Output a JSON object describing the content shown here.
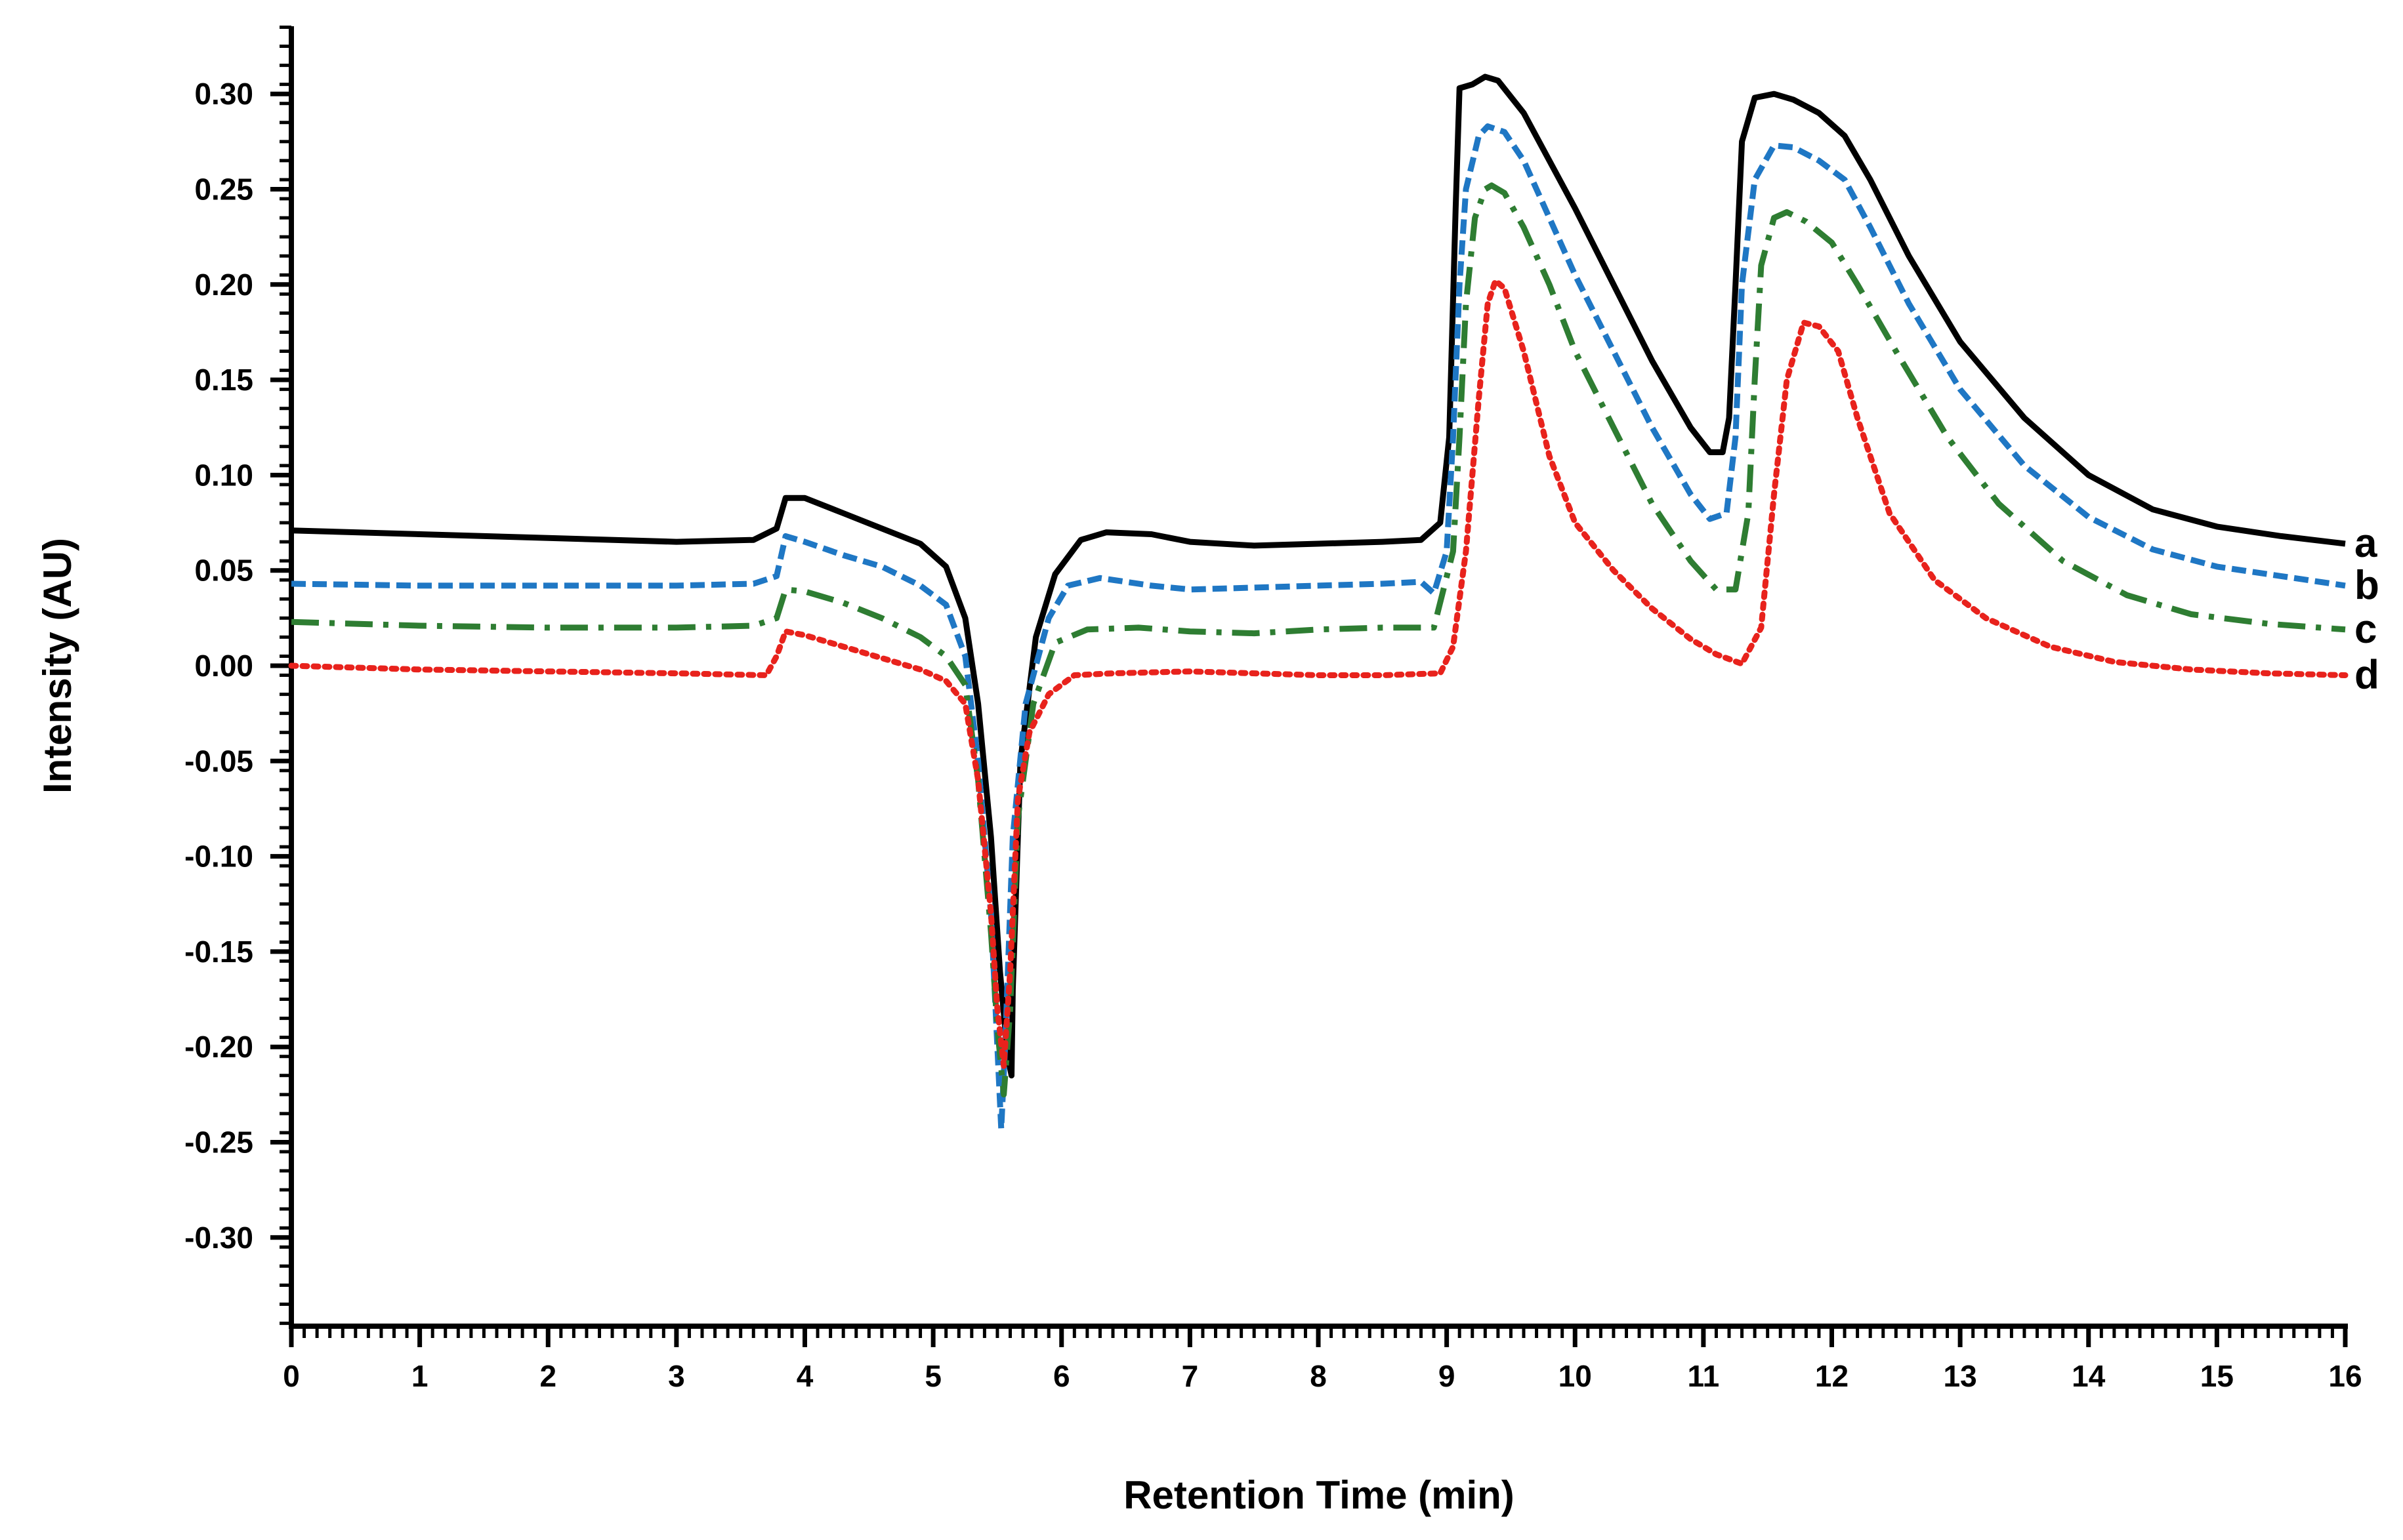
{
  "chart_data": {
    "type": "line",
    "title": "",
    "xlabel": "Retention Time (min)",
    "ylabel": "Intensity (AU)",
    "xlim": [
      0,
      16
    ],
    "ylim": [
      -0.345,
      0.335
    ],
    "grid": false,
    "legend": "end-of-line labels",
    "x_ticks": [
      0,
      1,
      2,
      3,
      4,
      5,
      6,
      7,
      8,
      9,
      10,
      11,
      12,
      13,
      14,
      15,
      16
    ],
    "x_tick_labels": [
      "0",
      "1",
      "2",
      "3",
      "4",
      "5",
      "6",
      "7",
      "8",
      "9",
      "10",
      "11",
      "12",
      "13",
      "14",
      "15",
      "16"
    ],
    "y_ticks": [
      0.3,
      0.25,
      0.2,
      0.15,
      0.1,
      0.05,
      0.0,
      -0.05,
      -0.1,
      -0.15,
      -0.2,
      -0.25,
      -0.3
    ],
    "y_tick_labels": [
      "0.30",
      "0.25",
      "0.20",
      "0.15",
      "0.10",
      "0.05",
      "0.00",
      "-0.05",
      "-0.10",
      "-0.15",
      "-0.20",
      "-0.25",
      "-0.30"
    ],
    "series": [
      {
        "name": "a",
        "label": "a",
        "color": "#000000",
        "dash": "solid",
        "points": [
          [
            0,
            0.071
          ],
          [
            1,
            0.069
          ],
          [
            2,
            0.067
          ],
          [
            3,
            0.065
          ],
          [
            3.6,
            0.066
          ],
          [
            3.78,
            0.072
          ],
          [
            3.85,
            0.088
          ],
          [
            4.0,
            0.088
          ],
          [
            4.3,
            0.08
          ],
          [
            4.6,
            0.072
          ],
          [
            4.9,
            0.064
          ],
          [
            5.1,
            0.052
          ],
          [
            5.25,
            0.025
          ],
          [
            5.35,
            -0.02
          ],
          [
            5.45,
            -0.09
          ],
          [
            5.52,
            -0.16
          ],
          [
            5.58,
            -0.205
          ],
          [
            5.61,
            -0.215
          ],
          [
            5.62,
            -0.17
          ],
          [
            5.68,
            -0.05
          ],
          [
            5.8,
            0.015
          ],
          [
            5.95,
            0.048
          ],
          [
            6.15,
            0.066
          ],
          [
            6.35,
            0.07
          ],
          [
            6.7,
            0.069
          ],
          [
            7.0,
            0.065
          ],
          [
            7.5,
            0.063
          ],
          [
            8.0,
            0.064
          ],
          [
            8.5,
            0.065
          ],
          [
            8.8,
            0.066
          ],
          [
            8.95,
            0.075
          ],
          [
            9.02,
            0.12
          ],
          [
            9.07,
            0.24
          ],
          [
            9.1,
            0.303
          ],
          [
            9.2,
            0.305
          ],
          [
            9.3,
            0.309
          ],
          [
            9.4,
            0.307
          ],
          [
            9.6,
            0.29
          ],
          [
            9.8,
            0.265
          ],
          [
            10.0,
            0.24
          ],
          [
            10.3,
            0.2
          ],
          [
            10.6,
            0.16
          ],
          [
            10.9,
            0.125
          ],
          [
            11.05,
            0.112
          ],
          [
            11.15,
            0.112
          ],
          [
            11.2,
            0.13
          ],
          [
            11.25,
            0.2
          ],
          [
            11.3,
            0.275
          ],
          [
            11.4,
            0.298
          ],
          [
            11.55,
            0.3
          ],
          [
            11.7,
            0.297
          ],
          [
            11.9,
            0.29
          ],
          [
            12.1,
            0.278
          ],
          [
            12.3,
            0.255
          ],
          [
            12.6,
            0.215
          ],
          [
            13.0,
            0.17
          ],
          [
            13.5,
            0.13
          ],
          [
            14.0,
            0.1
          ],
          [
            14.5,
            0.082
          ],
          [
            15.0,
            0.073
          ],
          [
            15.5,
            0.068
          ],
          [
            16.0,
            0.064
          ]
        ]
      },
      {
        "name": "b",
        "label": "b",
        "color": "#1f77c4",
        "dash": "short-dash",
        "points": [
          [
            0,
            0.043
          ],
          [
            1,
            0.042
          ],
          [
            2,
            0.042
          ],
          [
            3,
            0.042
          ],
          [
            3.6,
            0.043
          ],
          [
            3.78,
            0.047
          ],
          [
            3.85,
            0.068
          ],
          [
            4.0,
            0.065
          ],
          [
            4.3,
            0.058
          ],
          [
            4.6,
            0.052
          ],
          [
            4.9,
            0.042
          ],
          [
            5.1,
            0.032
          ],
          [
            5.25,
            0.005
          ],
          [
            5.35,
            -0.05
          ],
          [
            5.45,
            -0.13
          ],
          [
            5.5,
            -0.2
          ],
          [
            5.53,
            -0.243
          ],
          [
            5.56,
            -0.2
          ],
          [
            5.62,
            -0.09
          ],
          [
            5.72,
            -0.02
          ],
          [
            5.9,
            0.025
          ],
          [
            6.05,
            0.042
          ],
          [
            6.3,
            0.046
          ],
          [
            6.7,
            0.042
          ],
          [
            7.0,
            0.04
          ],
          [
            7.5,
            0.041
          ],
          [
            8.0,
            0.042
          ],
          [
            8.5,
            0.043
          ],
          [
            8.8,
            0.044
          ],
          [
            8.9,
            0.038
          ],
          [
            9.0,
            0.06
          ],
          [
            9.05,
            0.12
          ],
          [
            9.1,
            0.2
          ],
          [
            9.15,
            0.25
          ],
          [
            9.25,
            0.278
          ],
          [
            9.32,
            0.283
          ],
          [
            9.45,
            0.28
          ],
          [
            9.6,
            0.265
          ],
          [
            9.8,
            0.235
          ],
          [
            10.0,
            0.205
          ],
          [
            10.3,
            0.165
          ],
          [
            10.6,
            0.125
          ],
          [
            10.9,
            0.09
          ],
          [
            11.05,
            0.077
          ],
          [
            11.18,
            0.08
          ],
          [
            11.25,
            0.12
          ],
          [
            11.3,
            0.2
          ],
          [
            11.4,
            0.255
          ],
          [
            11.55,
            0.273
          ],
          [
            11.7,
            0.272
          ],
          [
            11.9,
            0.265
          ],
          [
            12.1,
            0.255
          ],
          [
            12.3,
            0.23
          ],
          [
            12.6,
            0.19
          ],
          [
            13.0,
            0.145
          ],
          [
            13.5,
            0.105
          ],
          [
            14.0,
            0.078
          ],
          [
            14.5,
            0.061
          ],
          [
            15.0,
            0.052
          ],
          [
            15.5,
            0.047
          ],
          [
            16.0,
            0.042
          ]
        ]
      },
      {
        "name": "c",
        "label": "c",
        "color": "#2e7d32",
        "dash": "dash-dot",
        "points": [
          [
            0,
            0.023
          ],
          [
            1,
            0.021
          ],
          [
            2,
            0.02
          ],
          [
            3,
            0.02
          ],
          [
            3.6,
            0.021
          ],
          [
            3.78,
            0.025
          ],
          [
            3.85,
            0.04
          ],
          [
            4.0,
            0.039
          ],
          [
            4.3,
            0.033
          ],
          [
            4.6,
            0.025
          ],
          [
            4.9,
            0.015
          ],
          [
            5.1,
            0.005
          ],
          [
            5.25,
            -0.01
          ],
          [
            5.35,
            -0.06
          ],
          [
            5.45,
            -0.14
          ],
          [
            5.5,
            -0.19
          ],
          [
            5.55,
            -0.225
          ],
          [
            5.6,
            -0.18
          ],
          [
            5.66,
            -0.08
          ],
          [
            5.78,
            -0.02
          ],
          [
            5.95,
            0.012
          ],
          [
            6.2,
            0.019
          ],
          [
            6.6,
            0.02
          ],
          [
            7.0,
            0.018
          ],
          [
            7.5,
            0.017
          ],
          [
            8.0,
            0.019
          ],
          [
            8.5,
            0.02
          ],
          [
            8.9,
            0.02
          ],
          [
            9.05,
            0.06
          ],
          [
            9.1,
            0.12
          ],
          [
            9.15,
            0.19
          ],
          [
            9.22,
            0.235
          ],
          [
            9.3,
            0.25
          ],
          [
            9.35,
            0.252
          ],
          [
            9.45,
            0.248
          ],
          [
            9.6,
            0.23
          ],
          [
            9.8,
            0.2
          ],
          [
            10.0,
            0.165
          ],
          [
            10.3,
            0.125
          ],
          [
            10.6,
            0.085
          ],
          [
            10.9,
            0.055
          ],
          [
            11.1,
            0.04
          ],
          [
            11.25,
            0.04
          ],
          [
            11.35,
            0.08
          ],
          [
            11.4,
            0.15
          ],
          [
            11.45,
            0.21
          ],
          [
            11.55,
            0.235
          ],
          [
            11.65,
            0.238
          ],
          [
            11.8,
            0.233
          ],
          [
            12.0,
            0.222
          ],
          [
            12.2,
            0.2
          ],
          [
            12.5,
            0.165
          ],
          [
            12.9,
            0.12
          ],
          [
            13.3,
            0.085
          ],
          [
            13.8,
            0.055
          ],
          [
            14.3,
            0.037
          ],
          [
            14.8,
            0.027
          ],
          [
            15.4,
            0.022
          ],
          [
            16.0,
            0.019
          ]
        ]
      },
      {
        "name": "d",
        "label": "d",
        "color": "#e8221c",
        "dash": "dotted",
        "points": [
          [
            0,
            0.0
          ],
          [
            1,
            -0.002
          ],
          [
            2,
            -0.003
          ],
          [
            3,
            -0.004
          ],
          [
            3.7,
            -0.005
          ],
          [
            3.78,
            0.005
          ],
          [
            3.85,
            0.018
          ],
          [
            4.0,
            0.016
          ],
          [
            4.3,
            0.01
          ],
          [
            4.6,
            0.004
          ],
          [
            4.9,
            -0.002
          ],
          [
            5.1,
            -0.008
          ],
          [
            5.25,
            -0.02
          ],
          [
            5.35,
            -0.06
          ],
          [
            5.45,
            -0.13
          ],
          [
            5.5,
            -0.18
          ],
          [
            5.55,
            -0.21
          ],
          [
            5.6,
            -0.16
          ],
          [
            5.66,
            -0.07
          ],
          [
            5.75,
            -0.035
          ],
          [
            5.9,
            -0.015
          ],
          [
            6.1,
            -0.005
          ],
          [
            6.4,
            -0.004
          ],
          [
            7.0,
            -0.003
          ],
          [
            7.5,
            -0.004
          ],
          [
            8.0,
            -0.005
          ],
          [
            8.5,
            -0.005
          ],
          [
            8.95,
            -0.004
          ],
          [
            9.05,
            0.01
          ],
          [
            9.15,
            0.06
          ],
          [
            9.25,
            0.14
          ],
          [
            9.32,
            0.19
          ],
          [
            9.38,
            0.202
          ],
          [
            9.45,
            0.198
          ],
          [
            9.6,
            0.165
          ],
          [
            9.8,
            0.11
          ],
          [
            10.0,
            0.075
          ],
          [
            10.3,
            0.05
          ],
          [
            10.6,
            0.03
          ],
          [
            10.9,
            0.014
          ],
          [
            11.1,
            0.006
          ],
          [
            11.3,
            0.001
          ],
          [
            11.45,
            0.02
          ],
          [
            11.55,
            0.09
          ],
          [
            11.65,
            0.15
          ],
          [
            11.78,
            0.18
          ],
          [
            11.9,
            0.178
          ],
          [
            12.05,
            0.165
          ],
          [
            12.2,
            0.13
          ],
          [
            12.45,
            0.08
          ],
          [
            12.8,
            0.045
          ],
          [
            13.2,
            0.025
          ],
          [
            13.7,
            0.01
          ],
          [
            14.2,
            0.002
          ],
          [
            14.8,
            -0.002
          ],
          [
            15.4,
            -0.004
          ],
          [
            16.0,
            -0.005
          ]
        ]
      }
    ]
  }
}
